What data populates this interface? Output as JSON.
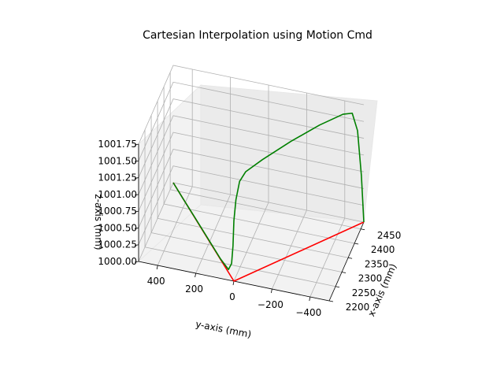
{
  "chart_data": {
    "type": "line",
    "projection": "3d",
    "title": "Cartesian Interpolation using Motion Cmd",
    "xlabel": "x-axis (mm)",
    "ylabel": "y-axis (mm)",
    "zlabel": "z-axis (mm)",
    "grid": true,
    "x_ticks": [
      "2200",
      "2250",
      "2300",
      "2350",
      "2400",
      "2450"
    ],
    "y_ticks": [
      "400",
      "200",
      "0",
      "−200",
      "−400"
    ],
    "z_ticks": [
      "1000.00",
      "1000.25",
      "1000.50",
      "1000.75",
      "1001.00",
      "1001.25",
      "1001.50",
      "1001.75"
    ],
    "series": [
      {
        "color": "#ff0000",
        "points": [
          {
            "x": 2474,
            "y": 500,
            "z": 1000.0
          },
          {
            "x": 2200,
            "y": 0,
            "z": 1000.0
          },
          {
            "x": 2474,
            "y": -500,
            "z": 1000.0
          }
        ]
      },
      {
        "color": "#008000",
        "points": [
          {
            "x": 2474,
            "y": 500,
            "z": 1000.0
          },
          {
            "x": 2430,
            "y": 420,
            "z": 1000.0
          },
          {
            "x": 2380,
            "y": 330,
            "z": 1000.01
          },
          {
            "x": 2320,
            "y": 220,
            "z": 1000.01
          },
          {
            "x": 2260,
            "y": 110,
            "z": 1000.01
          },
          {
            "x": 2225,
            "y": 45,
            "z": 1000.04
          },
          {
            "x": 2212,
            "y": 20,
            "z": 1000.2
          },
          {
            "x": 2205,
            "y": 8,
            "z": 1000.5
          },
          {
            "x": 2200,
            "y": 0,
            "z": 1000.9
          },
          {
            "x": 2204,
            "y": -8,
            "z": 1001.2
          },
          {
            "x": 2212,
            "y": -22,
            "z": 1001.45
          },
          {
            "x": 2225,
            "y": -45,
            "z": 1001.55
          },
          {
            "x": 2260,
            "y": -110,
            "z": 1001.62
          },
          {
            "x": 2320,
            "y": -220,
            "z": 1001.7
          },
          {
            "x": 2380,
            "y": -330,
            "z": 1001.75
          },
          {
            "x": 2430,
            "y": -420,
            "z": 1001.75
          },
          {
            "x": 2450,
            "y": -455,
            "z": 1001.7
          },
          {
            "x": 2462,
            "y": -475,
            "z": 1001.4
          },
          {
            "x": 2470,
            "y": -490,
            "z": 1000.7
          },
          {
            "x": 2474,
            "y": -500,
            "z": 1000.0
          }
        ]
      }
    ]
  }
}
